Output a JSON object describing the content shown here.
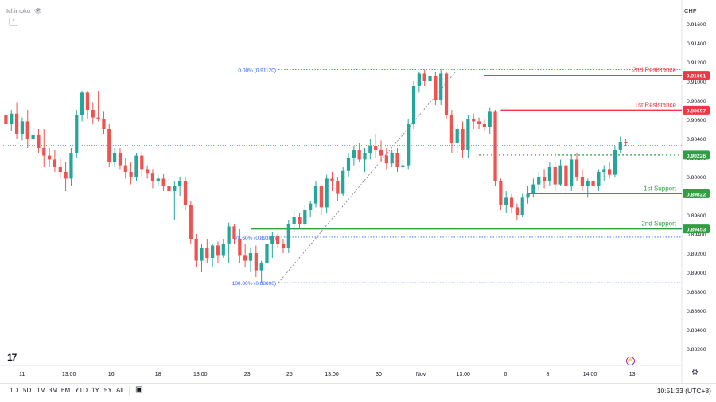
{
  "header": {
    "indicator_name": "Ichimoku",
    "currency_label": "CHF"
  },
  "timeframes": [
    "1D",
    "5D",
    "1M",
    "3M",
    "6M",
    "YTD",
    "1Y",
    "5Y",
    "All"
  ],
  "clock": "10:51:33 (UTC+8)",
  "colors": {
    "up": "#26a69a",
    "down": "#ef5350",
    "resistance": "#f23645",
    "support": "#2ea043",
    "fib": "#2962ff",
    "current": "#2ea043"
  },
  "chart_data": {
    "type": "candlestick",
    "title": "",
    "ylim": [
      0.8805,
      0.918
    ],
    "y_ticks": [
      "0.91600",
      "0.91400",
      "0.91200",
      "0.91000",
      "0.90800",
      "0.90600",
      "0.90400",
      "0.90200",
      "0.90000",
      "0.89800",
      "0.89600",
      "0.89400",
      "0.89200",
      "0.89000",
      "0.88800",
      "0.88600",
      "0.88400",
      "0.88200"
    ],
    "x_ticks": [
      "11",
      "13:00",
      "16",
      "18",
      "13:00",
      "23",
      "25",
      "13:00",
      "30",
      "Nov",
      "13:00",
      "6",
      "8",
      "14:00",
      "13"
    ],
    "candles": [
      {
        "o": 0.9065,
        "h": 0.9068,
        "l": 0.905,
        "c": 0.9055
      },
      {
        "o": 0.9055,
        "h": 0.907,
        "l": 0.9048,
        "c": 0.9066
      },
      {
        "o": 0.9066,
        "h": 0.9078,
        "l": 0.904,
        "c": 0.9045
      },
      {
        "o": 0.9045,
        "h": 0.9062,
        "l": 0.9038,
        "c": 0.9058
      },
      {
        "o": 0.9058,
        "h": 0.907,
        "l": 0.903,
        "c": 0.904
      },
      {
        "o": 0.904,
        "h": 0.9052,
        "l": 0.9035,
        "c": 0.9044
      },
      {
        "o": 0.9044,
        "h": 0.905,
        "l": 0.9025,
        "c": 0.903
      },
      {
        "o": 0.903,
        "h": 0.905,
        "l": 0.901,
        "c": 0.9022
      },
      {
        "o": 0.9022,
        "h": 0.903,
        "l": 0.901,
        "c": 0.9018
      },
      {
        "o": 0.9018,
        "h": 0.9028,
        "l": 0.9005,
        "c": 0.901
      },
      {
        "o": 0.901,
        "h": 0.902,
        "l": 0.8998,
        "c": 0.9005
      },
      {
        "o": 0.9005,
        "h": 0.9015,
        "l": 0.8985,
        "c": 0.8998
      },
      {
        "o": 0.8998,
        "h": 0.903,
        "l": 0.899,
        "c": 0.9025
      },
      {
        "o": 0.9025,
        "h": 0.907,
        "l": 0.902,
        "c": 0.9065
      },
      {
        "o": 0.9065,
        "h": 0.909,
        "l": 0.9058,
        "c": 0.9088
      },
      {
        "o": 0.9088,
        "h": 0.909,
        "l": 0.906,
        "c": 0.907
      },
      {
        "o": 0.907,
        "h": 0.9078,
        "l": 0.9055,
        "c": 0.9062
      },
      {
        "o": 0.9062,
        "h": 0.909,
        "l": 0.9058,
        "c": 0.906
      },
      {
        "o": 0.906,
        "h": 0.9068,
        "l": 0.9045,
        "c": 0.905
      },
      {
        "o": 0.905,
        "h": 0.9055,
        "l": 0.901,
        "c": 0.9015
      },
      {
        "o": 0.9015,
        "h": 0.903,
        "l": 0.901,
        "c": 0.9025
      },
      {
        "o": 0.9025,
        "h": 0.903,
        "l": 0.9008,
        "c": 0.9012
      },
      {
        "o": 0.9012,
        "h": 0.902,
        "l": 0.8998,
        "c": 0.9005
      },
      {
        "o": 0.9005,
        "h": 0.9015,
        "l": 0.8992,
        "c": 0.9
      },
      {
        "o": 0.9,
        "h": 0.9025,
        "l": 0.8995,
        "c": 0.9022
      },
      {
        "o": 0.9022,
        "h": 0.9026,
        "l": 0.9,
        "c": 0.9008
      },
      {
        "o": 0.9008,
        "h": 0.9012,
        "l": 0.8998,
        "c": 0.9004
      },
      {
        "o": 0.9004,
        "h": 0.9008,
        "l": 0.8988,
        "c": 0.8995
      },
      {
        "o": 0.8995,
        "h": 0.9002,
        "l": 0.899,
        "c": 0.8998
      },
      {
        "o": 0.8998,
        "h": 0.9003,
        "l": 0.8985,
        "c": 0.899
      },
      {
        "o": 0.899,
        "h": 0.8998,
        "l": 0.8975,
        "c": 0.8985
      },
      {
        "o": 0.8985,
        "h": 0.8995,
        "l": 0.8955,
        "c": 0.899
      },
      {
        "o": 0.899,
        "h": 0.9,
        "l": 0.898,
        "c": 0.8995
      },
      {
        "o": 0.8995,
        "h": 0.9,
        "l": 0.8965,
        "c": 0.897
      },
      {
        "o": 0.897,
        "h": 0.8975,
        "l": 0.893,
        "c": 0.8935
      },
      {
        "o": 0.8935,
        "h": 0.894,
        "l": 0.8905,
        "c": 0.8912
      },
      {
        "o": 0.8912,
        "h": 0.893,
        "l": 0.89,
        "c": 0.8925
      },
      {
        "o": 0.8925,
        "h": 0.8935,
        "l": 0.891,
        "c": 0.8915
      },
      {
        "o": 0.8915,
        "h": 0.893,
        "l": 0.8905,
        "c": 0.8928
      },
      {
        "o": 0.8928,
        "h": 0.8932,
        "l": 0.891,
        "c": 0.8918
      },
      {
        "o": 0.8918,
        "h": 0.8935,
        "l": 0.8915,
        "c": 0.893
      },
      {
        "o": 0.893,
        "h": 0.8952,
        "l": 0.891,
        "c": 0.8948
      },
      {
        "o": 0.8948,
        "h": 0.895,
        "l": 0.893,
        "c": 0.8935
      },
      {
        "o": 0.8935,
        "h": 0.8945,
        "l": 0.891,
        "c": 0.8918
      },
      {
        "o": 0.8918,
        "h": 0.893,
        "l": 0.8905,
        "c": 0.8912
      },
      {
        "o": 0.8912,
        "h": 0.8925,
        "l": 0.89,
        "c": 0.892
      },
      {
        "o": 0.892,
        "h": 0.8928,
        "l": 0.8895,
        "c": 0.8902
      },
      {
        "o": 0.8902,
        "h": 0.8912,
        "l": 0.8889,
        "c": 0.891
      },
      {
        "o": 0.891,
        "h": 0.8935,
        "l": 0.8905,
        "c": 0.893
      },
      {
        "o": 0.893,
        "h": 0.8942,
        "l": 0.8915,
        "c": 0.8938
      },
      {
        "o": 0.8938,
        "h": 0.894,
        "l": 0.8925,
        "c": 0.893
      },
      {
        "o": 0.893,
        "h": 0.8935,
        "l": 0.892,
        "c": 0.8925
      },
      {
        "o": 0.8925,
        "h": 0.8955,
        "l": 0.892,
        "c": 0.895
      },
      {
        "o": 0.895,
        "h": 0.8965,
        "l": 0.8942,
        "c": 0.8958
      },
      {
        "o": 0.8958,
        "h": 0.8962,
        "l": 0.8945,
        "c": 0.895
      },
      {
        "o": 0.895,
        "h": 0.897,
        "l": 0.8948,
        "c": 0.8965
      },
      {
        "o": 0.8965,
        "h": 0.8975,
        "l": 0.8958,
        "c": 0.8972
      },
      {
        "o": 0.8972,
        "h": 0.8995,
        "l": 0.8968,
        "c": 0.899
      },
      {
        "o": 0.899,
        "h": 0.8992,
        "l": 0.896,
        "c": 0.8968
      },
      {
        "o": 0.8968,
        "h": 0.9002,
        "l": 0.8962,
        "c": 0.8998
      },
      {
        "o": 0.8998,
        "h": 0.9005,
        "l": 0.8985,
        "c": 0.8995
      },
      {
        "o": 0.8995,
        "h": 0.9,
        "l": 0.8975,
        "c": 0.8982
      },
      {
        "o": 0.8982,
        "h": 0.901,
        "l": 0.898,
        "c": 0.9006
      },
      {
        "o": 0.9006,
        "h": 0.9025,
        "l": 0.9,
        "c": 0.902
      },
      {
        "o": 0.902,
        "h": 0.9032,
        "l": 0.9012,
        "c": 0.9028
      },
      {
        "o": 0.9028,
        "h": 0.9035,
        "l": 0.9015,
        "c": 0.9018
      },
      {
        "o": 0.9018,
        "h": 0.903,
        "l": 0.9005,
        "c": 0.9025
      },
      {
        "o": 0.9025,
        "h": 0.904,
        "l": 0.9018,
        "c": 0.9032
      },
      {
        "o": 0.9032,
        "h": 0.9045,
        "l": 0.902,
        "c": 0.9028
      },
      {
        "o": 0.9028,
        "h": 0.9038,
        "l": 0.9015,
        "c": 0.9022
      },
      {
        "o": 0.9022,
        "h": 0.903,
        "l": 0.9008,
        "c": 0.9014
      },
      {
        "o": 0.9014,
        "h": 0.9028,
        "l": 0.901,
        "c": 0.9025
      },
      {
        "o": 0.9025,
        "h": 0.903,
        "l": 0.9005,
        "c": 0.901
      },
      {
        "o": 0.901,
        "h": 0.9018,
        "l": 0.9008,
        "c": 0.9012
      },
      {
        "o": 0.9012,
        "h": 0.906,
        "l": 0.9008,
        "c": 0.9055
      },
      {
        "o": 0.9055,
        "h": 0.91,
        "l": 0.905,
        "c": 0.9095
      },
      {
        "o": 0.9095,
        "h": 0.911,
        "l": 0.9088,
        "c": 0.9108
      },
      {
        "o": 0.9108,
        "h": 0.9112,
        "l": 0.9095,
        "c": 0.91
      },
      {
        "o": 0.91,
        "h": 0.9108,
        "l": 0.909,
        "c": 0.9105
      },
      {
        "o": 0.9105,
        "h": 0.911,
        "l": 0.9075,
        "c": 0.908
      },
      {
        "o": 0.908,
        "h": 0.9112,
        "l": 0.9075,
        "c": 0.9108
      },
      {
        "o": 0.9108,
        "h": 0.911,
        "l": 0.906,
        "c": 0.9065
      },
      {
        "o": 0.9065,
        "h": 0.907,
        "l": 0.9025,
        "c": 0.9035
      },
      {
        "o": 0.9035,
        "h": 0.9055,
        "l": 0.9025,
        "c": 0.905
      },
      {
        "o": 0.905,
        "h": 0.9058,
        "l": 0.902,
        "c": 0.9028
      },
      {
        "o": 0.9028,
        "h": 0.9065,
        "l": 0.902,
        "c": 0.906
      },
      {
        "o": 0.906,
        "h": 0.9066,
        "l": 0.905,
        "c": 0.9058
      },
      {
        "o": 0.9058,
        "h": 0.9062,
        "l": 0.905,
        "c": 0.9055
      },
      {
        "o": 0.9055,
        "h": 0.906,
        "l": 0.9048,
        "c": 0.9052
      },
      {
        "o": 0.9052,
        "h": 0.9072,
        "l": 0.9045,
        "c": 0.9068
      },
      {
        "o": 0.9068,
        "h": 0.907,
        "l": 0.899,
        "c": 0.8995
      },
      {
        "o": 0.8995,
        "h": 0.8998,
        "l": 0.8965,
        "c": 0.897
      },
      {
        "o": 0.897,
        "h": 0.8985,
        "l": 0.8962,
        "c": 0.8978
      },
      {
        "o": 0.8978,
        "h": 0.8982,
        "l": 0.8962,
        "c": 0.8968
      },
      {
        "o": 0.8968,
        "h": 0.8972,
        "l": 0.8955,
        "c": 0.896
      },
      {
        "o": 0.896,
        "h": 0.8982,
        "l": 0.8958,
        "c": 0.8978
      },
      {
        "o": 0.8978,
        "h": 0.899,
        "l": 0.8972,
        "c": 0.8982
      },
      {
        "o": 0.8982,
        "h": 0.8998,
        "l": 0.8978,
        "c": 0.8992
      },
      {
        "o": 0.8992,
        "h": 0.9005,
        "l": 0.8985,
        "c": 0.9
      },
      {
        "o": 0.9,
        "h": 0.9008,
        "l": 0.8988,
        "c": 0.8995
      },
      {
        "o": 0.8995,
        "h": 0.9015,
        "l": 0.899,
        "c": 0.901
      },
      {
        "o": 0.901,
        "h": 0.9015,
        "l": 0.8985,
        "c": 0.8992
      },
      {
        "o": 0.8992,
        "h": 0.9018,
        "l": 0.899,
        "c": 0.9012
      },
      {
        "o": 0.9012,
        "h": 0.902,
        "l": 0.898,
        "c": 0.899
      },
      {
        "o": 0.899,
        "h": 0.9022,
        "l": 0.8985,
        "c": 0.9018
      },
      {
        "o": 0.9018,
        "h": 0.9025,
        "l": 0.8995,
        "c": 0.9
      },
      {
        "o": 0.9,
        "h": 0.9008,
        "l": 0.8985,
        "c": 0.899
      },
      {
        "o": 0.899,
        "h": 0.8998,
        "l": 0.8978,
        "c": 0.8995
      },
      {
        "o": 0.8995,
        "h": 0.9002,
        "l": 0.8985,
        "c": 0.899
      },
      {
        "o": 0.899,
        "h": 0.9008,
        "l": 0.8985,
        "c": 0.9005
      },
      {
        "o": 0.9005,
        "h": 0.9012,
        "l": 0.8995,
        "c": 0.9008
      },
      {
        "o": 0.9008,
        "h": 0.9015,
        "l": 0.8998,
        "c": 0.9002
      },
      {
        "o": 0.9002,
        "h": 0.9032,
        "l": 0.9,
        "c": 0.9028
      },
      {
        "o": 0.9028,
        "h": 0.9042,
        "l": 0.9025,
        "c": 0.9036
      },
      {
        "o": 0.9036,
        "h": 0.904,
        "l": 0.9032,
        "c": 0.9035
      }
    ],
    "levels": [
      {
        "name": "2nd Resistance",
        "value": 0.91061,
        "label": "0.91061",
        "type": "resistance"
      },
      {
        "name": "1st Resistance",
        "value": 0.90697,
        "label": "0.90697",
        "type": "resistance"
      },
      {
        "name": "",
        "value": 0.90226,
        "label": "0.90226",
        "type": "current"
      },
      {
        "name": "1st Support",
        "value": 0.89822,
        "label": "0.89822",
        "type": "support"
      },
      {
        "name": "2nd Support",
        "value": 0.89453,
        "label": "0.89453",
        "type": "support"
      }
    ],
    "fibonacci": [
      {
        "label": "0.00% (0.91120)",
        "value": 0.9112
      },
      {
        "label": "78.60% (0.89367)",
        "value": 0.89367
      },
      {
        "label": "100.00% (0.88890)",
        "value": 0.8889
      }
    ],
    "last_price_line": 0.9033,
    "grid": false
  }
}
